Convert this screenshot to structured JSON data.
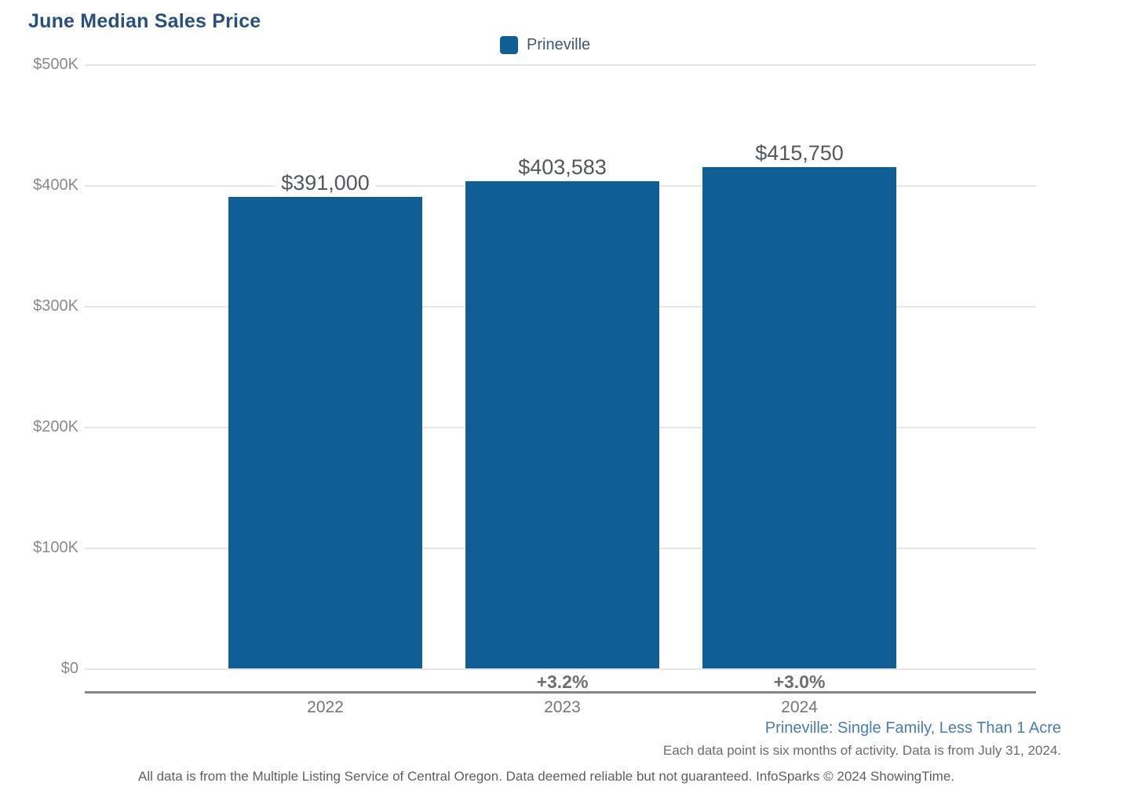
{
  "title": "June Median Sales Price",
  "legend": {
    "items": [
      {
        "label": "Prineville",
        "swatch_color": "#0f5f96"
      }
    ],
    "position": "top-center"
  },
  "chart_data": {
    "type": "bar",
    "categories": [
      "2022",
      "2023",
      "2024"
    ],
    "series": [
      {
        "name": "Prineville",
        "values": [
          391000,
          403583,
          415750
        ],
        "color": "#0f5f96"
      }
    ],
    "value_labels": [
      "$391,000",
      "$403,583",
      "$415,750"
    ],
    "pct_change_labels": [
      "",
      "+3.2%",
      "+3.0%"
    ],
    "title": "June Median Sales Price",
    "xlabel": "",
    "ylabel": "",
    "ylim": [
      0,
      500000
    ],
    "yticks": [
      0,
      100000,
      200000,
      300000,
      400000,
      500000
    ],
    "ytick_labels": [
      "$0",
      "$100K",
      "$200K",
      "$300K",
      "$400K",
      "$500K"
    ],
    "grid": true,
    "legend_position": "top-center"
  },
  "footer": {
    "series_note": "Prineville: Single Family, Less Than 1 Acre",
    "data_note": "Each data point is six months of activity. Data is from July 31, 2024.",
    "disclaimer": "All data is from the Multiple Listing Service of Central Oregon. Data deemed reliable but not guaranteed. InfoSparks © 2024 ShowingTime."
  },
  "colors": {
    "bar": "#0f5f96",
    "title_text": "#27517c",
    "footer_link": "#477eb2",
    "axis_line": "#858585",
    "gridline": "#e6e6e6"
  }
}
